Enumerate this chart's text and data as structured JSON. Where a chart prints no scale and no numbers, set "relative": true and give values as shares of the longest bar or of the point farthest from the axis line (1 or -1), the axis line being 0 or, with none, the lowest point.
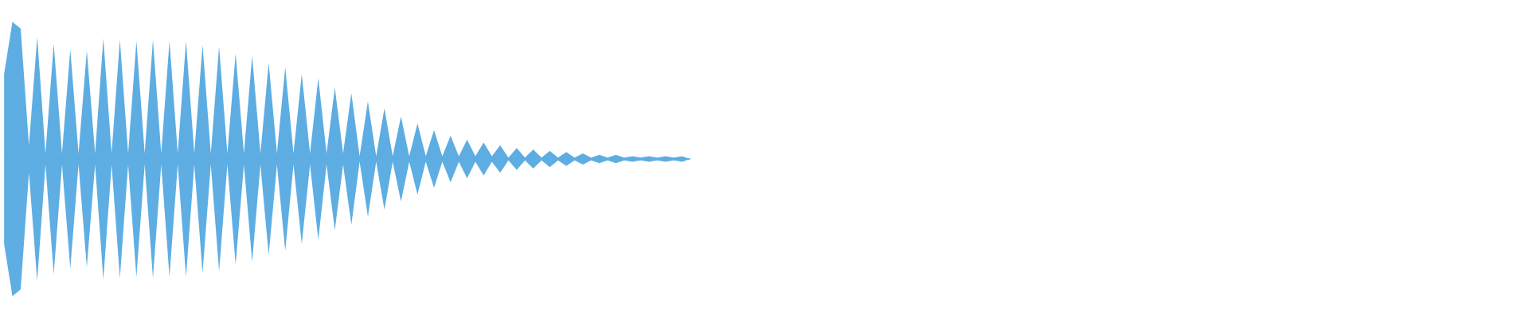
{
  "chart_data": {
    "type": "area",
    "relative": true,
    "ref_lines": [
      {
        "axis": "y",
        "value": 0,
        "color": "#5dade2"
      }
    ],
    "categories": [
      null,
      null,
      null,
      null,
      null,
      null,
      null,
      null,
      null,
      null,
      null,
      null,
      null,
      null,
      null,
      null,
      null,
      null,
      null,
      null,
      null,
      null,
      null,
      null,
      null,
      null,
      null,
      null,
      null,
      null,
      null,
      null,
      null,
      null,
      null,
      null,
      null,
      null,
      null,
      null,
      null,
      null,
      null,
      null,
      null,
      null,
      null,
      null,
      null,
      null,
      null,
      null,
      null,
      null,
      null,
      null,
      null,
      null,
      null,
      null,
      null,
      null,
      null,
      null,
      null,
      null,
      null,
      null,
      null,
      null,
      null,
      null,
      null,
      null,
      null,
      null,
      null,
      null,
      null,
      null,
      null,
      null,
      null,
      null
    ],
    "series": [
      {
        "color": "#5dade2",
        "values": [
          0.62,
          1.0,
          0.95,
          0.1,
          0.89,
          0.04,
          0.84,
          0.04,
          0.8,
          0.04,
          0.79,
          0.04,
          0.88,
          0.04,
          0.87,
          0.04,
          0.86,
          0.04,
          0.87,
          0.04,
          0.86,
          0.04,
          0.86,
          0.04,
          0.83,
          0.04,
          0.82,
          0.04,
          0.77,
          0.04,
          0.75,
          0.04,
          0.7,
          0.04,
          0.67,
          0.04,
          0.62,
          0.04,
          0.59,
          0.04,
          0.52,
          0.04,
          0.48,
          0.02,
          0.42,
          0.02,
          0.37,
          0.02,
          0.31,
          0.02,
          0.26,
          0.02,
          0.21,
          0.02,
          0.17,
          0.02,
          0.14,
          0.02,
          0.12,
          0.02,
          0.1,
          0.01,
          0.08,
          0.01,
          0.07,
          0.01,
          0.06,
          0.01,
          0.05,
          0.01,
          0.04,
          0.01,
          0.03,
          0.01,
          0.03,
          0.01,
          0.02,
          0.01,
          0.02,
          0.01,
          0.02,
          0.01,
          0.02,
          0
        ],
        "name": null
      },
      {
        "color": "#5eaee3",
        "values": [
          -0.62,
          -1.0,
          -0.95,
          -0.1,
          -0.89,
          -0.04,
          -0.84,
          -0.04,
          -0.8,
          -0.04,
          -0.79,
          -0.04,
          -0.88,
          -0.04,
          -0.87,
          -0.04,
          -0.86,
          -0.04,
          -0.87,
          -0.04,
          -0.86,
          -0.04,
          -0.86,
          -0.04,
          -0.83,
          -0.04,
          -0.82,
          -0.04,
          -0.77,
          -0.04,
          -0.75,
          -0.04,
          -0.7,
          -0.04,
          -0.67,
          -0.04,
          -0.62,
          -0.04,
          -0.59,
          -0.04,
          -0.52,
          -0.04,
          -0.48,
          -0.02,
          -0.42,
          -0.02,
          -0.37,
          -0.02,
          -0.31,
          -0.02,
          -0.26,
          -0.02,
          -0.21,
          -0.02,
          -0.17,
          -0.02,
          -0.14,
          -0.02,
          -0.12,
          -0.02,
          -0.1,
          -0.01,
          -0.08,
          -0.01,
          -0.07,
          -0.01,
          -0.06,
          -0.01,
          -0.05,
          -0.01,
          -0.04,
          -0.01,
          -0.03,
          -0.01,
          -0.03,
          -0.01,
          -0.02,
          -0.01,
          -0.02,
          -0.01,
          -0.02,
          -0.01,
          -0.02,
          0
        ]
      }
    ]
  }
}
